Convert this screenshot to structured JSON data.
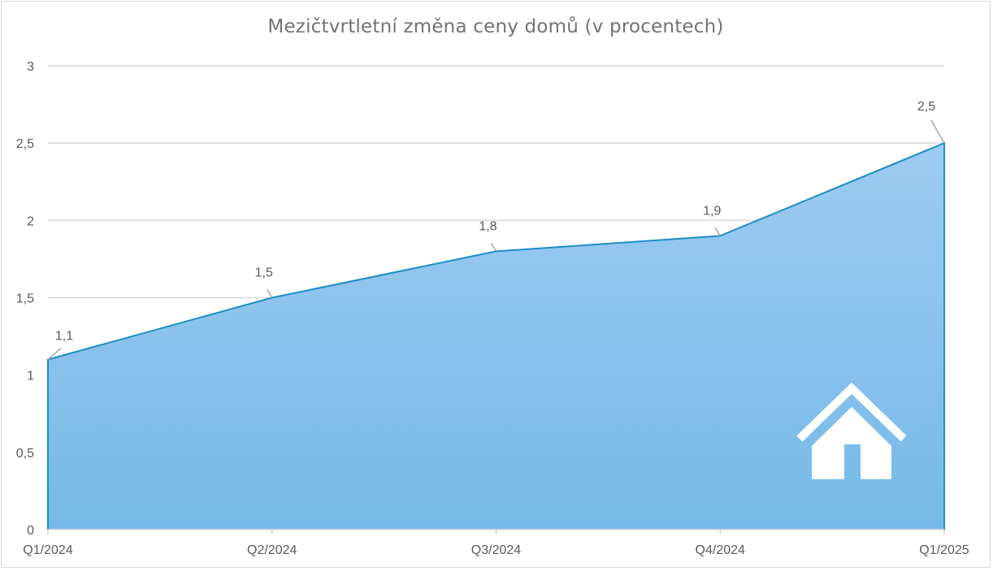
{
  "chart_data": {
    "type": "area",
    "title": "Mezičtvrtletní změna ceny domů (v procentech)",
    "xlabel": "",
    "ylabel": "",
    "categories": [
      "Q1/2024",
      "Q2/2024",
      "Q3/2024",
      "Q4/2024",
      "Q1/2025"
    ],
    "series": [
      {
        "values": [
          1.1,
          1.5,
          1.8,
          1.9,
          2.5
        ],
        "data_labels": [
          "1,1",
          "1,5",
          "1,8",
          "1,9",
          "2,5"
        ]
      }
    ],
    "ylim": [
      0,
      3
    ],
    "yticks": [
      0,
      0.5,
      1,
      1.5,
      2,
      2.5,
      3
    ],
    "ytick_labels": [
      "0",
      "0,5",
      "1",
      "1,5",
      "2",
      "2,5",
      "3"
    ],
    "grid": true,
    "legend": "none",
    "colors": {
      "fill_top": "#9dcbf0",
      "fill_bottom": "#76b9e8",
      "line": "#1f8ec4",
      "grid": "#d9d9d9",
      "text": "#595959",
      "leader": "#a6a6a6"
    },
    "decoration_icon": "house-icon"
  }
}
